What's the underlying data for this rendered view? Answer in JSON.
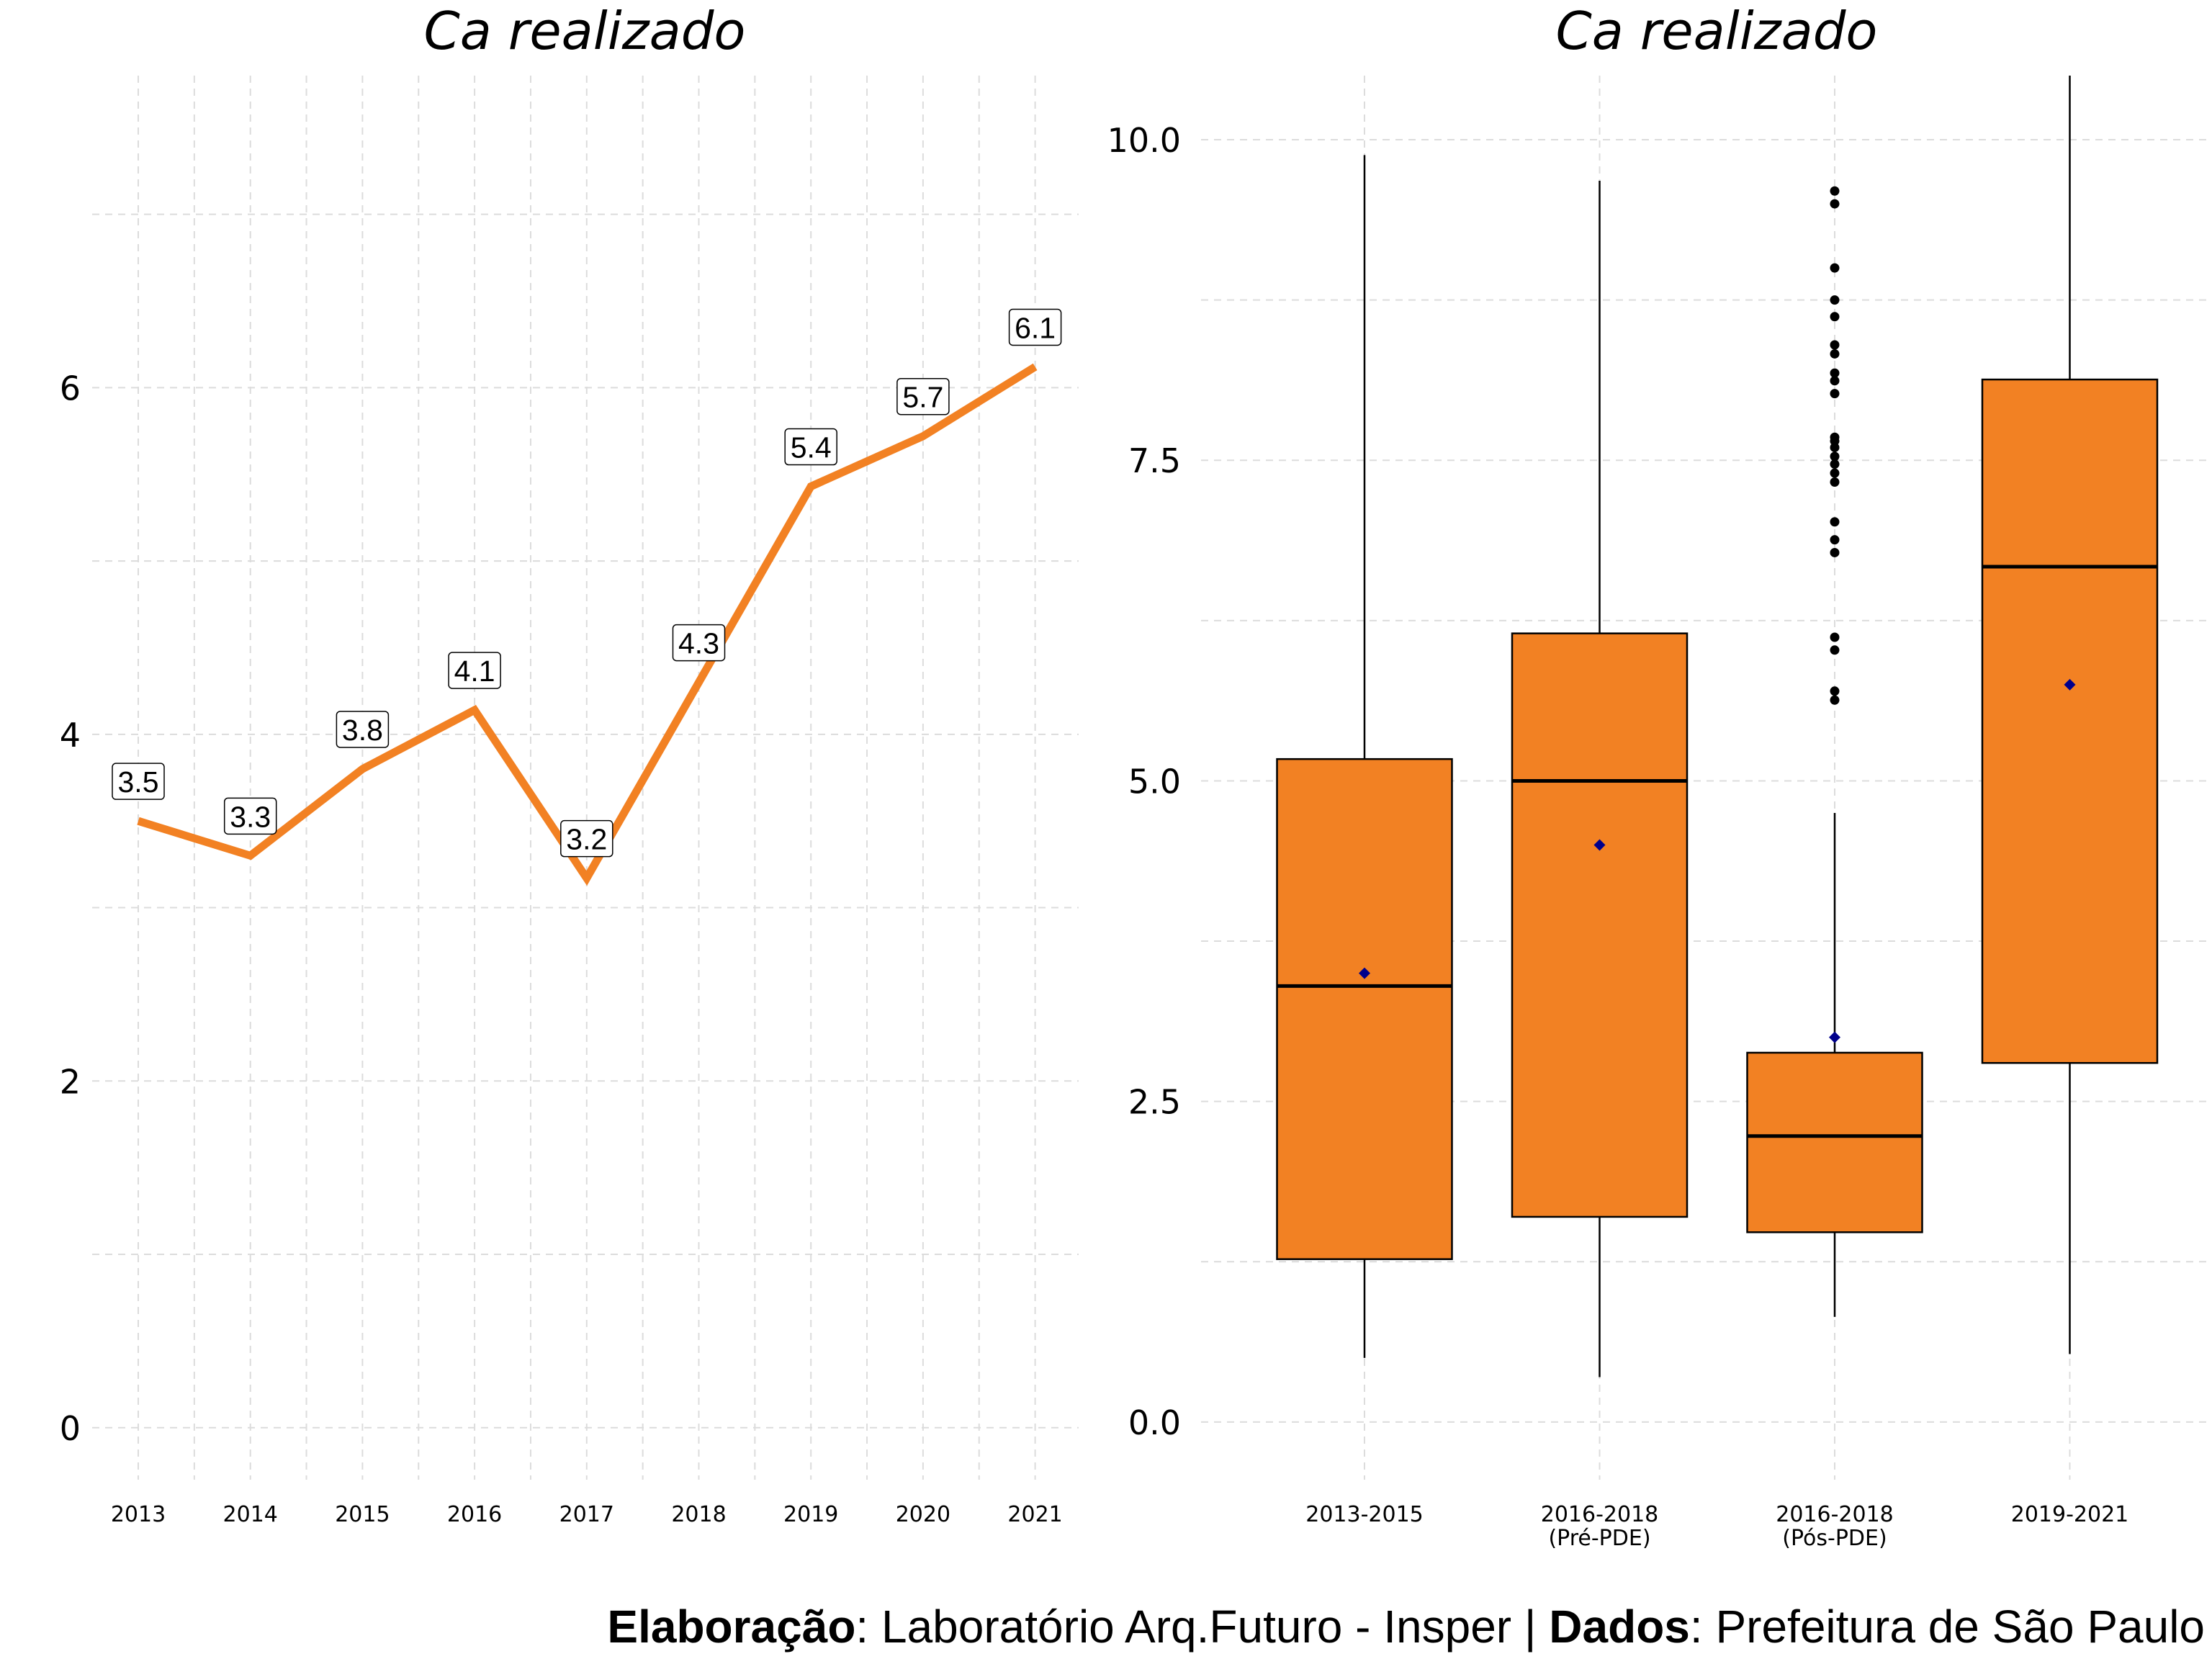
{
  "chart_data": [
    {
      "type": "line",
      "title": "Ca realizado",
      "xlabel": "",
      "ylabel": "",
      "x": [
        "2013",
        "2014",
        "2015",
        "2016",
        "2017",
        "2018",
        "2019",
        "2020",
        "2021"
      ],
      "series": [
        {
          "values": [
            3.5,
            3.3,
            3.8,
            4.14,
            3.17,
            4.3,
            5.43,
            5.72,
            6.12
          ]
        }
      ],
      "data_labels": [
        "3.5",
        "3.3",
        "3.8",
        "4.1",
        "3.2",
        "4.3",
        "5.4",
        "5.7",
        "6.1"
      ],
      "y_ticks": [
        {
          "value": 0,
          "label": "0"
        },
        {
          "value": 2,
          "label": "2"
        },
        {
          "value": 4,
          "label": "4"
        },
        {
          "value": 6,
          "label": "6"
        }
      ],
      "ylim": [
        -0.3,
        7.8
      ],
      "grid": true,
      "line_color": "#F28123",
      "label_style": "boxed"
    },
    {
      "type": "box",
      "title": "Ca realizado",
      "xlabel": "",
      "ylabel": "",
      "categories": [
        {
          "line1": "2013-2015",
          "line2": ""
        },
        {
          "line1": "2016-2018",
          "line2": "(Pré-PDE)"
        },
        {
          "line1": "2016-2018",
          "line2": "(Pós-PDE)"
        },
        {
          "line1": "2019-2021",
          "line2": ""
        }
      ],
      "boxes": [
        {
          "whisker_low": 0.5,
          "q1": 1.27,
          "median": 3.4,
          "q3": 5.17,
          "whisker_high": 9.88,
          "mean": 3.5,
          "outliers": []
        },
        {
          "whisker_low": 0.35,
          "q1": 1.6,
          "median": 5.0,
          "q3": 6.15,
          "whisker_high": 9.68,
          "mean": 4.5,
          "outliers": []
        },
        {
          "whisker_low": 0.82,
          "q1": 1.48,
          "median": 2.23,
          "q3": 2.88,
          "whisker_high": 4.75,
          "mean": 3.0,
          "outliers": [
            5.63,
            5.7,
            6.02,
            6.12,
            6.78,
            6.88,
            7.02,
            7.33,
            7.4,
            7.47,
            7.53,
            7.6,
            7.65,
            7.68,
            8.02,
            8.12,
            8.18,
            8.33,
            8.4,
            8.62,
            8.75,
            9.0,
            9.5,
            9.6
          ]
        },
        {
          "whisker_low": 0.53,
          "q1": 2.8,
          "median": 6.67,
          "q3": 8.13,
          "whisker_high": 10.5,
          "mean": 5.75,
          "outliers": []
        }
      ],
      "y_ticks": [
        {
          "value": 0,
          "label": "0.0"
        },
        {
          "value": 2.5,
          "label": "2.5"
        },
        {
          "value": 5,
          "label": "5.0"
        },
        {
          "value": 7.5,
          "label": "7.5"
        },
        {
          "value": 10,
          "label": "10.0"
        }
      ],
      "ylim": [
        -0.45,
        10.5
      ],
      "grid": true,
      "box_fill": "#F28123",
      "mean_color": "#00008B"
    }
  ],
  "caption": {
    "bold1": "Elaboração",
    "text1": ": Laboratório Arq.Futuro - Insper | ",
    "bold2": "Dados",
    "text2": ": Prefeitura de São Paulo"
  }
}
